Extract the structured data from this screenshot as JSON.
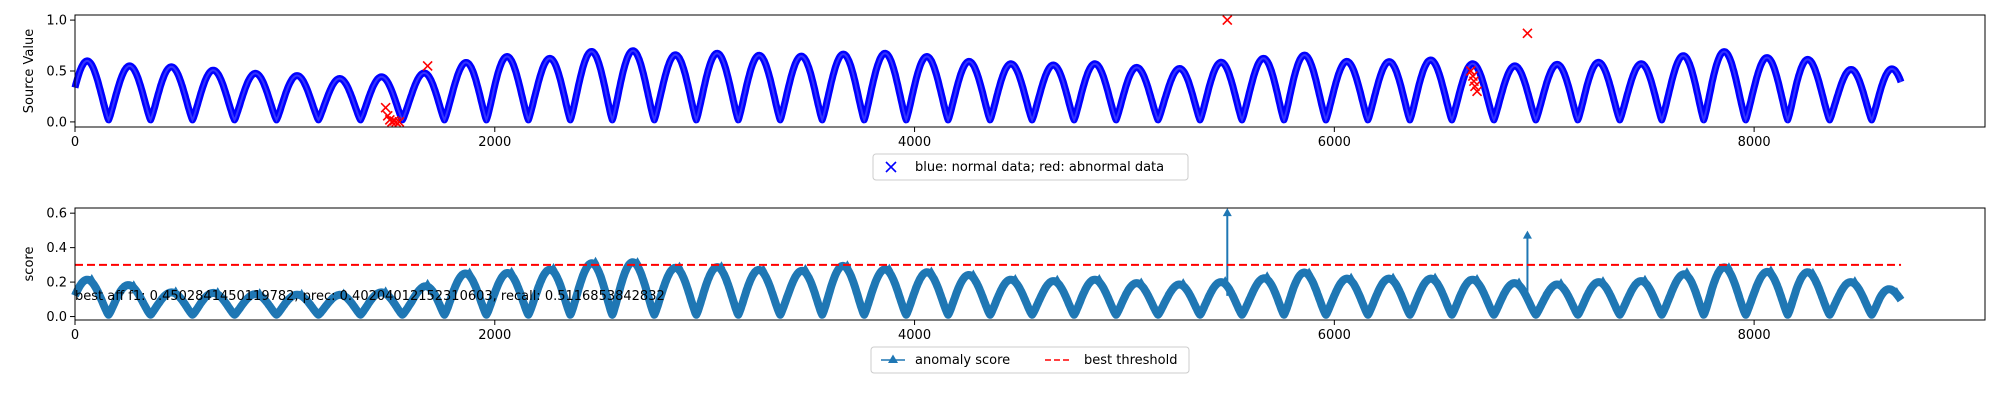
{
  "chart_data": [
    {
      "type": "scatter",
      "title": "",
      "xlabel": "",
      "ylabel": "Source Value",
      "xlim": [
        0,
        9100
      ],
      "ylim": [
        -0.05,
        1.05
      ],
      "xticks": [
        0,
        2000,
        4000,
        6000,
        8000
      ],
      "yticks": [
        0.0,
        0.5,
        1.0
      ],
      "grid": false,
      "legend": {
        "location": "below-center",
        "label": "blue: normal data; red: abnormal data"
      },
      "series": [
        {
          "name": "normal",
          "color": "#0000ff",
          "marker": "x",
          "signal": {
            "x_start": 0,
            "x_end": 8700,
            "cycle_length": 200,
            "peak_first": 0.62,
            "trough": 0.02,
            "peak_samples": [
              {
                "x": 0,
                "peak": 0.62
              },
              {
                "x": 200,
                "peak": 0.55
              },
              {
                "x": 400,
                "peak": 0.55
              },
              {
                "x": 600,
                "peak": 0.52
              },
              {
                "x": 800,
                "peak": 0.48
              },
              {
                "x": 1000,
                "peak": 0.47
              },
              {
                "x": 1200,
                "peak": 0.42
              },
              {
                "x": 1400,
                "peak": 0.44
              },
              {
                "x": 1600,
                "peak": 0.45
              },
              {
                "x": 1800,
                "peak": 0.55
              },
              {
                "x": 2000,
                "peak": 0.66
              },
              {
                "x": 2200,
                "peak": 0.6
              },
              {
                "x": 2400,
                "peak": 0.68
              },
              {
                "x": 2600,
                "peak": 0.72
              },
              {
                "x": 2800,
                "peak": 0.65
              },
              {
                "x": 3000,
                "peak": 0.68
              },
              {
                "x": 3200,
                "peak": 0.66
              },
              {
                "x": 3400,
                "peak": 0.64
              },
              {
                "x": 3600,
                "peak": 0.66
              },
              {
                "x": 3800,
                "peak": 0.68
              },
              {
                "x": 4000,
                "peak": 0.66
              },
              {
                "x": 4200,
                "peak": 0.6
              },
              {
                "x": 4400,
                "peak": 0.58
              },
              {
                "x": 4600,
                "peak": 0.55
              },
              {
                "x": 4800,
                "peak": 0.58
              },
              {
                "x": 5000,
                "peak": 0.55
              },
              {
                "x": 5200,
                "peak": 0.5
              },
              {
                "x": 5400,
                "peak": 0.58
              },
              {
                "x": 5600,
                "peak": 0.6
              },
              {
                "x": 5800,
                "peak": 0.68
              },
              {
                "x": 6000,
                "peak": 0.6
              },
              {
                "x": 6200,
                "peak": 0.58
              },
              {
                "x": 6400,
                "peak": 0.62
              },
              {
                "x": 6600,
                "peak": 0.58
              },
              {
                "x": 6800,
                "peak": 0.55
              },
              {
                "x": 7000,
                "peak": 0.55
              },
              {
                "x": 7200,
                "peak": 0.6
              },
              {
                "x": 7400,
                "peak": 0.55
              },
              {
                "x": 7600,
                "peak": 0.62
              },
              {
                "x": 7800,
                "peak": 0.72
              },
              {
                "x": 8000,
                "peak": 0.62
              },
              {
                "x": 8200,
                "peak": 0.66
              },
              {
                "x": 8400,
                "peak": 0.5
              },
              {
                "x": 8600,
                "peak": 0.55
              },
              {
                "x": 8700,
                "peak": 0.5
              }
            ]
          }
        },
        {
          "name": "abnormal",
          "color": "#ff0000",
          "marker": "x",
          "points": [
            {
              "x": 1480,
              "y": 0.14
            },
            {
              "x": 1490,
              "y": 0.06
            },
            {
              "x": 1500,
              "y": 0.02
            },
            {
              "x": 1510,
              "y": 0.0
            },
            {
              "x": 1520,
              "y": 0.01
            },
            {
              "x": 1530,
              "y": 0.0
            },
            {
              "x": 1545,
              "y": 0.0
            },
            {
              "x": 1680,
              "y": 0.55
            },
            {
              "x": 5490,
              "y": 1.0
            },
            {
              "x": 6650,
              "y": 0.5
            },
            {
              "x": 6660,
              "y": 0.45
            },
            {
              "x": 6665,
              "y": 0.4
            },
            {
              "x": 6670,
              "y": 0.35
            },
            {
              "x": 6680,
              "y": 0.3
            },
            {
              "x": 6920,
              "y": 0.87
            }
          ]
        }
      ]
    },
    {
      "type": "line",
      "title": "",
      "xlabel": "",
      "ylabel": "score",
      "xlim": [
        0,
        9100
      ],
      "ylim": [
        -0.02,
        0.63
      ],
      "xticks": [
        0,
        2000,
        4000,
        6000,
        8000
      ],
      "yticks": [
        0.0,
        0.2,
        0.4,
        0.6
      ],
      "grid": false,
      "legend": {
        "location": "below-center",
        "entries": [
          "anomaly score",
          "best threshold"
        ]
      },
      "annotation": "best aff f1: 0.4502841450119782, prec: 0.40204012152310603, recall: 0.5116853842832",
      "series": [
        {
          "name": "anomaly score",
          "color": "#1f77b4",
          "marker": "^",
          "signal": {
            "x_start": 0,
            "x_end": 8700,
            "cycle_length": 200,
            "peak_samples": [
              {
                "x": 0,
                "peak": 0.22
              },
              {
                "x": 200,
                "peak": 0.2
              },
              {
                "x": 400,
                "peak": 0.14
              },
              {
                "x": 600,
                "peak": 0.14
              },
              {
                "x": 800,
                "peak": 0.13
              },
              {
                "x": 1000,
                "peak": 0.13
              },
              {
                "x": 1200,
                "peak": 0.12
              },
              {
                "x": 1400,
                "peak": 0.14
              },
              {
                "x": 1600,
                "peak": 0.14
              },
              {
                "x": 1800,
                "peak": 0.25
              },
              {
                "x": 2000,
                "peak": 0.25
              },
              {
                "x": 2200,
                "peak": 0.26
              },
              {
                "x": 2400,
                "peak": 0.3
              },
              {
                "x": 2600,
                "peak": 0.33
              },
              {
                "x": 2800,
                "peak": 0.28
              },
              {
                "x": 3000,
                "peak": 0.29
              },
              {
                "x": 3200,
                "peak": 0.28
              },
              {
                "x": 3400,
                "peak": 0.25
              },
              {
                "x": 3600,
                "peak": 0.3
              },
              {
                "x": 3800,
                "peak": 0.28
              },
              {
                "x": 4000,
                "peak": 0.26
              },
              {
                "x": 4200,
                "peak": 0.25
              },
              {
                "x": 4400,
                "peak": 0.22
              },
              {
                "x": 4600,
                "peak": 0.2
              },
              {
                "x": 4800,
                "peak": 0.22
              },
              {
                "x": 5000,
                "peak": 0.2
              },
              {
                "x": 5200,
                "peak": 0.18
              },
              {
                "x": 5400,
                "peak": 0.2
              },
              {
                "x": 5600,
                "peak": 0.2
              },
              {
                "x": 5800,
                "peak": 0.27
              },
              {
                "x": 6000,
                "peak": 0.22
              },
              {
                "x": 6200,
                "peak": 0.22
              },
              {
                "x": 6400,
                "peak": 0.22
              },
              {
                "x": 6600,
                "peak": 0.22
              },
              {
                "x": 6800,
                "peak": 0.2
              },
              {
                "x": 7000,
                "peak": 0.18
              },
              {
                "x": 7200,
                "peak": 0.2
              },
              {
                "x": 7400,
                "peak": 0.2
              },
              {
                "x": 7600,
                "peak": 0.22
              },
              {
                "x": 7800,
                "peak": 0.3
              },
              {
                "x": 8000,
                "peak": 0.25
              },
              {
                "x": 8200,
                "peak": 0.28
              },
              {
                "x": 8400,
                "peak": 0.2
              },
              {
                "x": 8600,
                "peak": 0.2
              },
              {
                "x": 8700,
                "peak": 0.12
              }
            ],
            "spikes": [
              {
                "x": 5490,
                "y": 0.6
              },
              {
                "x": 6920,
                "y": 0.47
              }
            ]
          }
        },
        {
          "name": "best threshold",
          "color": "#ff0000",
          "style": "dashed",
          "x": [
            0,
            8700
          ],
          "y": [
            0.3,
            0.3
          ]
        }
      ]
    }
  ]
}
